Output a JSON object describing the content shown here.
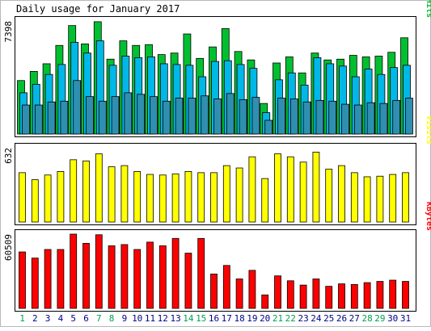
{
  "chart_data": {
    "type": "bar",
    "title": "Daily usage for January 2017",
    "categories": [
      "1",
      "2",
      "3",
      "4",
      "5",
      "6",
      "7",
      "8",
      "9",
      "10",
      "11",
      "12",
      "13",
      "14",
      "15",
      "16",
      "17",
      "18",
      "19",
      "20",
      "21",
      "22",
      "23",
      "24",
      "25",
      "26",
      "27",
      "28",
      "29",
      "30",
      "31"
    ],
    "weekend_days": [
      "1",
      "7",
      "8",
      "14",
      "15",
      "21",
      "22",
      "28",
      "29"
    ],
    "panels": [
      {
        "id": "hits",
        "legend": [
          "Pages",
          "Files",
          "Hits"
        ],
        "max_label": "7398",
        "ylim": [
          0,
          7398
        ],
        "series": [
          {
            "name": "Hits",
            "color": "#00c030",
            "values": [
              3500,
              4100,
              4600,
              5800,
              7100,
              5900,
              7350,
              4900,
              6100,
              5800,
              5850,
              5200,
              5300,
              6550,
              4950,
              5700,
              6900,
              5400,
              4850,
              2000,
              4650,
              5050,
              4000,
              5300,
              4850,
              4900,
              5150,
              5050,
              5100,
              5350,
              6300
            ]
          },
          {
            "name": "Files",
            "color": "#00b8e8",
            "values": [
              2700,
              3250,
              3900,
              4550,
              6000,
              5300,
              6100,
              4500,
              5100,
              5000,
              5050,
              4600,
              4550,
              4500,
              3750,
              4750,
              4800,
              4550,
              4300,
              1400,
              3550,
              4000,
              3200,
              5000,
              4600,
              4450,
              3750,
              4250,
              3900,
              4350,
              4500
            ]
          },
          {
            "name": "Pages",
            "color": "#2f8fb0",
            "values": [
              1900,
              1900,
              2100,
              2150,
              3500,
              2450,
              2150,
              2450,
              2700,
              2600,
              2450,
              2150,
              2350,
              2350,
              2500,
              2300,
              2650,
              2250,
              2400,
              900,
              2350,
              2300,
              2100,
              2200,
              2150,
              1950,
              1900,
              2050,
              2000,
              2200,
              2350
            ]
          }
        ]
      },
      {
        "id": "visits",
        "legend": [
          "Visits"
        ],
        "max_label": "632",
        "ylim": [
          0,
          632
        ],
        "series": [
          {
            "name": "Visits",
            "color": "#ffff00",
            "values": [
              420,
              360,
              400,
              430,
              530,
              520,
              580,
              470,
              480,
              430,
              405,
              400,
              410,
              430,
              420,
              420,
              480,
              460,
              555,
              370,
              580,
              555,
              510,
              595,
              450,
              480,
              420,
              385,
              390,
              405,
              420
            ]
          }
        ]
      },
      {
        "id": "kbytes",
        "legend": [
          "KBytes"
        ],
        "max_label": "60509",
        "ylim": [
          0,
          60509
        ],
        "series": [
          {
            "name": "KBytes",
            "color": "#ff0000",
            "values": [
              46000,
              41000,
              48000,
              48000,
              61000,
              53000,
              60000,
              51000,
              52000,
              48000,
              54000,
              51000,
              57000,
              45000,
              57000,
              28000,
              35000,
              24000,
              31000,
              11000,
              26500,
              22500,
              19000,
              24000,
              18000,
              20000,
              19500,
              21000,
              22000,
              23000,
              22000
            ]
          }
        ]
      }
    ],
    "colors": {
      "background": "#ffffff",
      "panel_bg": "#ffffff",
      "border": "#000000",
      "weekday_label": "#00008b",
      "weekend_label": "#00a050"
    }
  }
}
